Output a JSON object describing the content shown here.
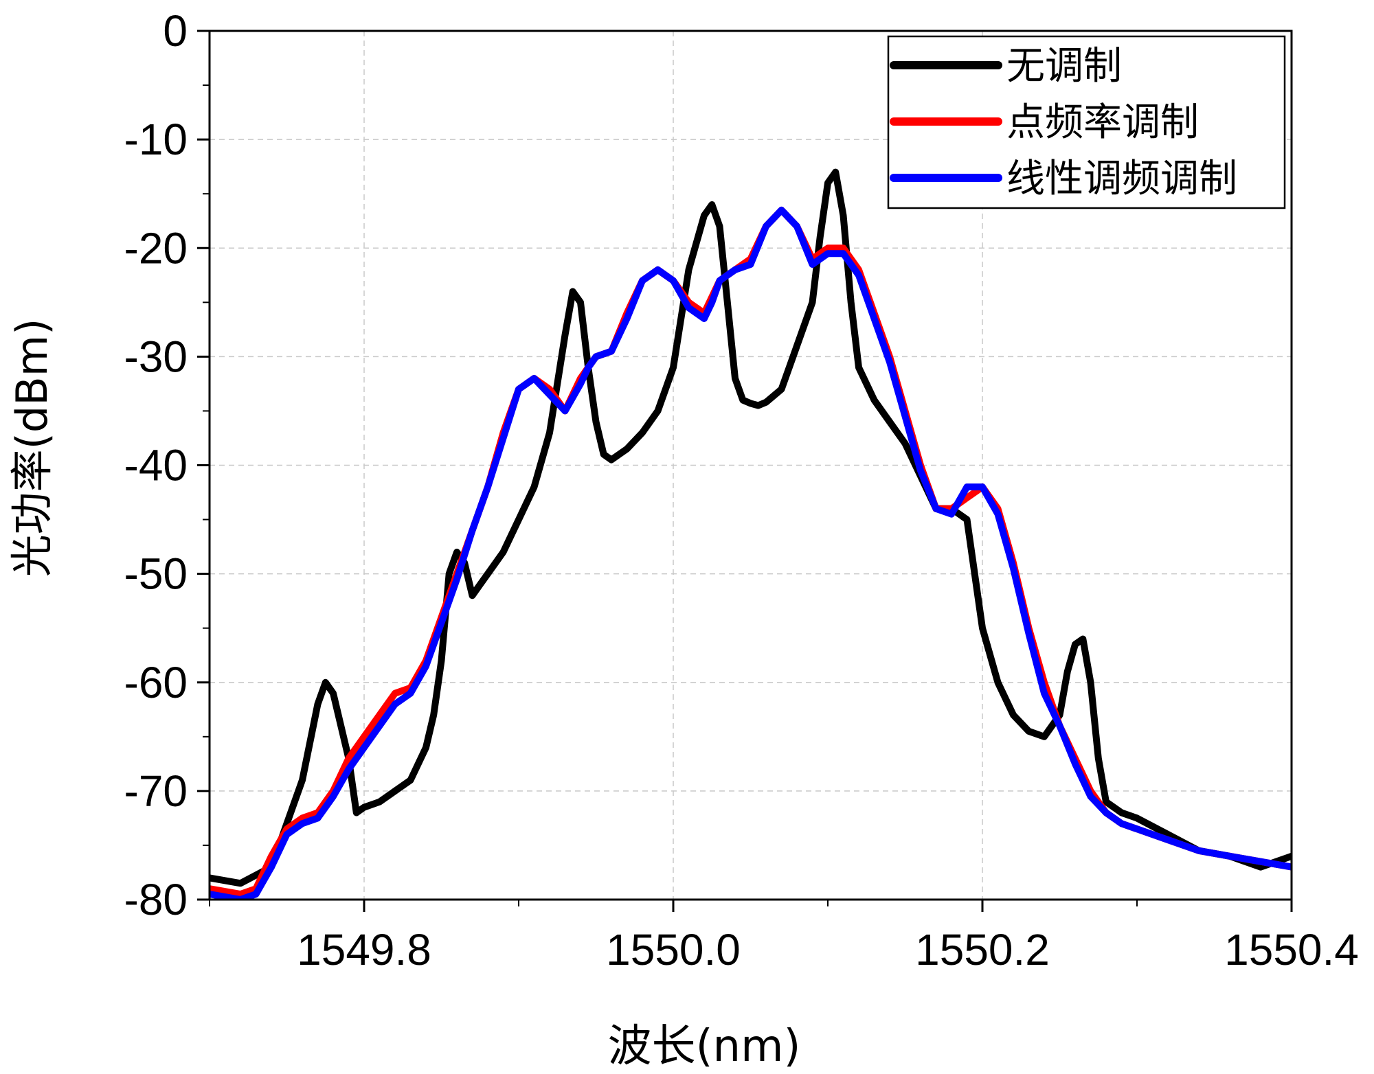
{
  "chart_data": {
    "type": "line",
    "title": "",
    "xlabel": "波长(nm)",
    "ylabel": "光功率(dBm)",
    "xlim": [
      1549.7,
      1550.4
    ],
    "ylim": [
      -80,
      0
    ],
    "grid": true,
    "legend_position": "top-right",
    "x_ticks": [
      {
        "value": 1549.8,
        "label": "1549.8"
      },
      {
        "value": 1550.0,
        "label": "1550.0"
      },
      {
        "value": 1550.2,
        "label": "1550.2"
      },
      {
        "value": 1550.4,
        "label": "1550.4"
      }
    ],
    "y_ticks": [
      {
        "value": 0,
        "label": "0"
      },
      {
        "value": -10,
        "label": "-10"
      },
      {
        "value": -20,
        "label": "-20"
      },
      {
        "value": -30,
        "label": "-30"
      },
      {
        "value": -40,
        "label": "-40"
      },
      {
        "value": -50,
        "label": "-50"
      },
      {
        "value": -60,
        "label": "-60"
      },
      {
        "value": -70,
        "label": "-70"
      },
      {
        "value": -80,
        "label": "-80"
      }
    ],
    "series": [
      {
        "name": "无调制",
        "color": "#000000",
        "x": [
          1549.7,
          1549.72,
          1549.74,
          1549.75,
          1549.76,
          1549.77,
          1549.775,
          1549.78,
          1549.79,
          1549.795,
          1549.8,
          1549.81,
          1549.82,
          1549.83,
          1549.84,
          1549.845,
          1549.85,
          1549.855,
          1549.86,
          1549.865,
          1549.87,
          1549.875,
          1549.88,
          1549.89,
          1549.9,
          1549.91,
          1549.92,
          1549.93,
          1549.935,
          1549.94,
          1549.945,
          1549.95,
          1549.955,
          1549.96,
          1549.965,
          1549.97,
          1549.98,
          1549.99,
          1550.0,
          1550.01,
          1550.02,
          1550.025,
          1550.03,
          1550.035,
          1550.04,
          1550.045,
          1550.05,
          1550.055,
          1550.06,
          1550.07,
          1550.08,
          1550.09,
          1550.095,
          1550.1,
          1550.105,
          1550.11,
          1550.115,
          1550.12,
          1550.13,
          1550.14,
          1550.15,
          1550.16,
          1550.17,
          1550.18,
          1550.19,
          1550.2,
          1550.21,
          1550.22,
          1550.23,
          1550.24,
          1550.25,
          1550.255,
          1550.26,
          1550.265,
          1550.27,
          1550.275,
          1550.28,
          1550.29,
          1550.3,
          1550.32,
          1550.34,
          1550.36,
          1550.38,
          1550.4
        ],
        "y": [
          -78,
          -78.5,
          -77,
          -73,
          -69,
          -62,
          -60,
          -61,
          -67,
          -72,
          -71.5,
          -71,
          -70,
          -69,
          -66,
          -63,
          -58,
          -50,
          -48,
          -49,
          -52,
          -51,
          -50,
          -48,
          -45,
          -42,
          -37,
          -28,
          -24,
          -25,
          -31,
          -36,
          -39,
          -39.5,
          -39,
          -38.5,
          -37,
          -35,
          -31,
          -22,
          -17,
          -16,
          -18,
          -25,
          -32,
          -34,
          -34.3,
          -34.5,
          -34.2,
          -33,
          -29,
          -25,
          -19,
          -14,
          -13,
          -17,
          -25,
          -31,
          -34,
          -36,
          -38,
          -41,
          -44,
          -44,
          -45,
          -55,
          -60,
          -63,
          -64.5,
          -65,
          -63,
          -59,
          -56.5,
          -56,
          -60,
          -67,
          -71,
          -72,
          -72.5,
          -74,
          -75.5,
          -76,
          -77,
          -76
        ]
      },
      {
        "name": "点频率调制",
        "color": "#ff0000",
        "x": [
          1549.7,
          1549.72,
          1549.73,
          1549.74,
          1549.75,
          1549.76,
          1549.77,
          1549.78,
          1549.79,
          1549.8,
          1549.81,
          1549.82,
          1549.83,
          1549.84,
          1549.85,
          1549.86,
          1549.87,
          1549.88,
          1549.89,
          1549.9,
          1549.91,
          1549.92,
          1549.93,
          1549.94,
          1549.945,
          1549.95,
          1549.96,
          1549.97,
          1549.98,
          1549.99,
          1550.0,
          1550.01,
          1550.02,
          1550.025,
          1550.03,
          1550.04,
          1550.05,
          1550.06,
          1550.07,
          1550.08,
          1550.09,
          1550.1,
          1550.11,
          1550.12,
          1550.13,
          1550.14,
          1550.15,
          1550.16,
          1550.17,
          1550.18,
          1550.19,
          1550.2,
          1550.21,
          1550.22,
          1550.23,
          1550.24,
          1550.25,
          1550.26,
          1550.27,
          1550.28,
          1550.29,
          1550.3,
          1550.32,
          1550.34,
          1550.36,
          1550.38,
          1550.4
        ],
        "y": [
          -79,
          -79.5,
          -79,
          -76,
          -73.5,
          -72.5,
          -72,
          -70,
          -67,
          -65,
          -63,
          -61,
          -60.5,
          -58,
          -54,
          -50,
          -46,
          -42,
          -37,
          -33,
          -32,
          -33,
          -35,
          -32,
          -31,
          -30,
          -29.5,
          -26,
          -23,
          -22,
          -23,
          -25,
          -26,
          -24.5,
          -23,
          -22,
          -21,
          -18,
          -16.5,
          -18,
          -21,
          -20,
          -20,
          -22,
          -26,
          -30,
          -35,
          -40,
          -44,
          -44,
          -43,
          -42,
          -44,
          -49,
          -55,
          -60,
          -64,
          -67,
          -70,
          -72,
          -73,
          -73.5,
          -74.5,
          -75.5,
          -76,
          -76.5,
          -77
        ]
      },
      {
        "name": "线性调频调制",
        "color": "#0000ff",
        "x": [
          1549.7,
          1549.72,
          1549.73,
          1549.74,
          1549.75,
          1549.76,
          1549.77,
          1549.78,
          1549.79,
          1549.8,
          1549.81,
          1549.82,
          1549.83,
          1549.84,
          1549.85,
          1549.86,
          1549.87,
          1549.88,
          1549.89,
          1549.9,
          1549.91,
          1549.92,
          1549.93,
          1549.94,
          1549.945,
          1549.95,
          1549.96,
          1549.97,
          1549.98,
          1549.99,
          1550.0,
          1550.01,
          1550.02,
          1550.025,
          1550.03,
          1550.04,
          1550.05,
          1550.06,
          1550.07,
          1550.08,
          1550.09,
          1550.1,
          1550.11,
          1550.12,
          1550.13,
          1550.14,
          1550.15,
          1550.16,
          1550.17,
          1550.18,
          1550.19,
          1550.2,
          1550.21,
          1550.22,
          1550.23,
          1550.24,
          1550.25,
          1550.26,
          1550.27,
          1550.28,
          1550.29,
          1550.3,
          1550.32,
          1550.34,
          1550.36,
          1550.38,
          1550.4
        ],
        "y": [
          -79.5,
          -80,
          -79.5,
          -77,
          -74,
          -73,
          -72.5,
          -70.5,
          -68,
          -66,
          -64,
          -62,
          -61,
          -58.5,
          -54.5,
          -50.5,
          -46,
          -42,
          -37.5,
          -33,
          -32,
          -33.5,
          -35,
          -32.5,
          -31,
          -30,
          -29.5,
          -26.5,
          -23,
          -22,
          -23,
          -25.5,
          -26.5,
          -25,
          -23,
          -22,
          -21.5,
          -18,
          -16.5,
          -18,
          -21.5,
          -20.5,
          -20.5,
          -22.5,
          -26.5,
          -30.5,
          -35.5,
          -40.5,
          -44,
          -44.5,
          -42,
          -42,
          -44.5,
          -49.5,
          -55.5,
          -61,
          -64,
          -67.5,
          -70.5,
          -72,
          -73,
          -73.5,
          -74.5,
          -75.5,
          -76,
          -76.5,
          -77
        ]
      }
    ]
  }
}
